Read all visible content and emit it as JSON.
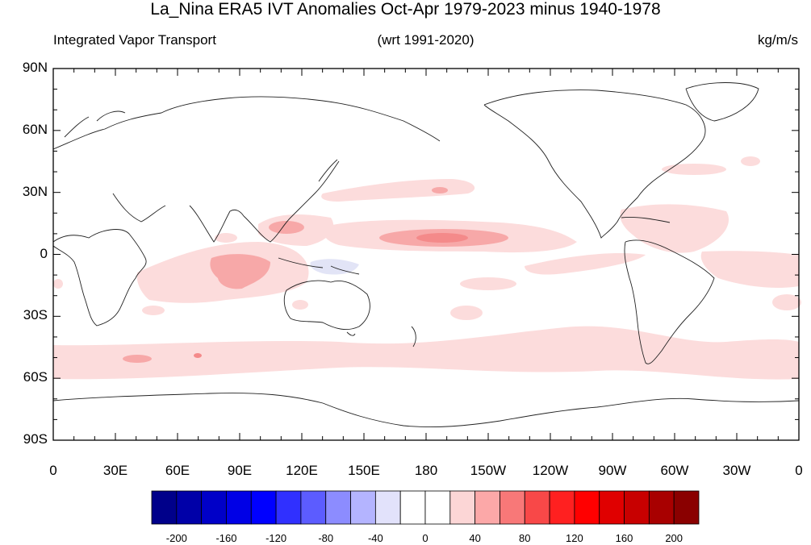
{
  "title": "La_Nina ERA5 IVT Anomalies Oct-Apr 1979-2023 minus 1940-1978",
  "subtitle_left": "Integrated Vapor Transport",
  "subtitle_center": "(wrt 1991-2020)",
  "subtitle_right": "kg/m/s",
  "lat_ticks": [
    {
      "label": "90N",
      "lat": 90
    },
    {
      "label": "60N",
      "lat": 60
    },
    {
      "label": "30N",
      "lat": 30
    },
    {
      "label": "0",
      "lat": 0
    },
    {
      "label": "30S",
      "lat": -30
    },
    {
      "label": "60S",
      "lat": -60
    },
    {
      "label": "90S",
      "lat": -90
    }
  ],
  "lon_ticks": [
    {
      "label": "0",
      "lon": 0
    },
    {
      "label": "30E",
      "lon": 30
    },
    {
      "label": "60E",
      "lon": 60
    },
    {
      "label": "90E",
      "lon": 90
    },
    {
      "label": "120E",
      "lon": 120
    },
    {
      "label": "150E",
      "lon": 150
    },
    {
      "label": "180",
      "lon": 180
    },
    {
      "label": "150W",
      "lon": 210
    },
    {
      "label": "120W",
      "lon": 240
    },
    {
      "label": "90W",
      "lon": 270
    },
    {
      "label": "60W",
      "lon": 300
    },
    {
      "label": "30W",
      "lon": 330
    },
    {
      "label": "0",
      "lon": 360
    }
  ],
  "colorbar": {
    "colors": [
      "#00008a",
      "#0000a8",
      "#0000c8",
      "#0000e6",
      "#0000ff",
      "#3030ff",
      "#5c5cff",
      "#8c8cff",
      "#b4b4ff",
      "#e2e2fb",
      "#ffffff",
      "#ffffff",
      "#fcd6d6",
      "#fca8a8",
      "#f87878",
      "#f84848",
      "#ff2020",
      "#ff0000",
      "#e00000",
      "#c80000",
      "#a80000",
      "#8a0000"
    ],
    "labels": [
      "-200",
      "-160",
      "-120",
      "-80",
      "-40",
      "0",
      "40",
      "80",
      "120",
      "160",
      "200"
    ]
  },
  "anomaly_colors": {
    "weak_positive": "#fcdcdc",
    "moderate_positive": "#f7a8a8",
    "strong_positive": "#f48a8a",
    "weak_negative": "#e2e4f6"
  }
}
